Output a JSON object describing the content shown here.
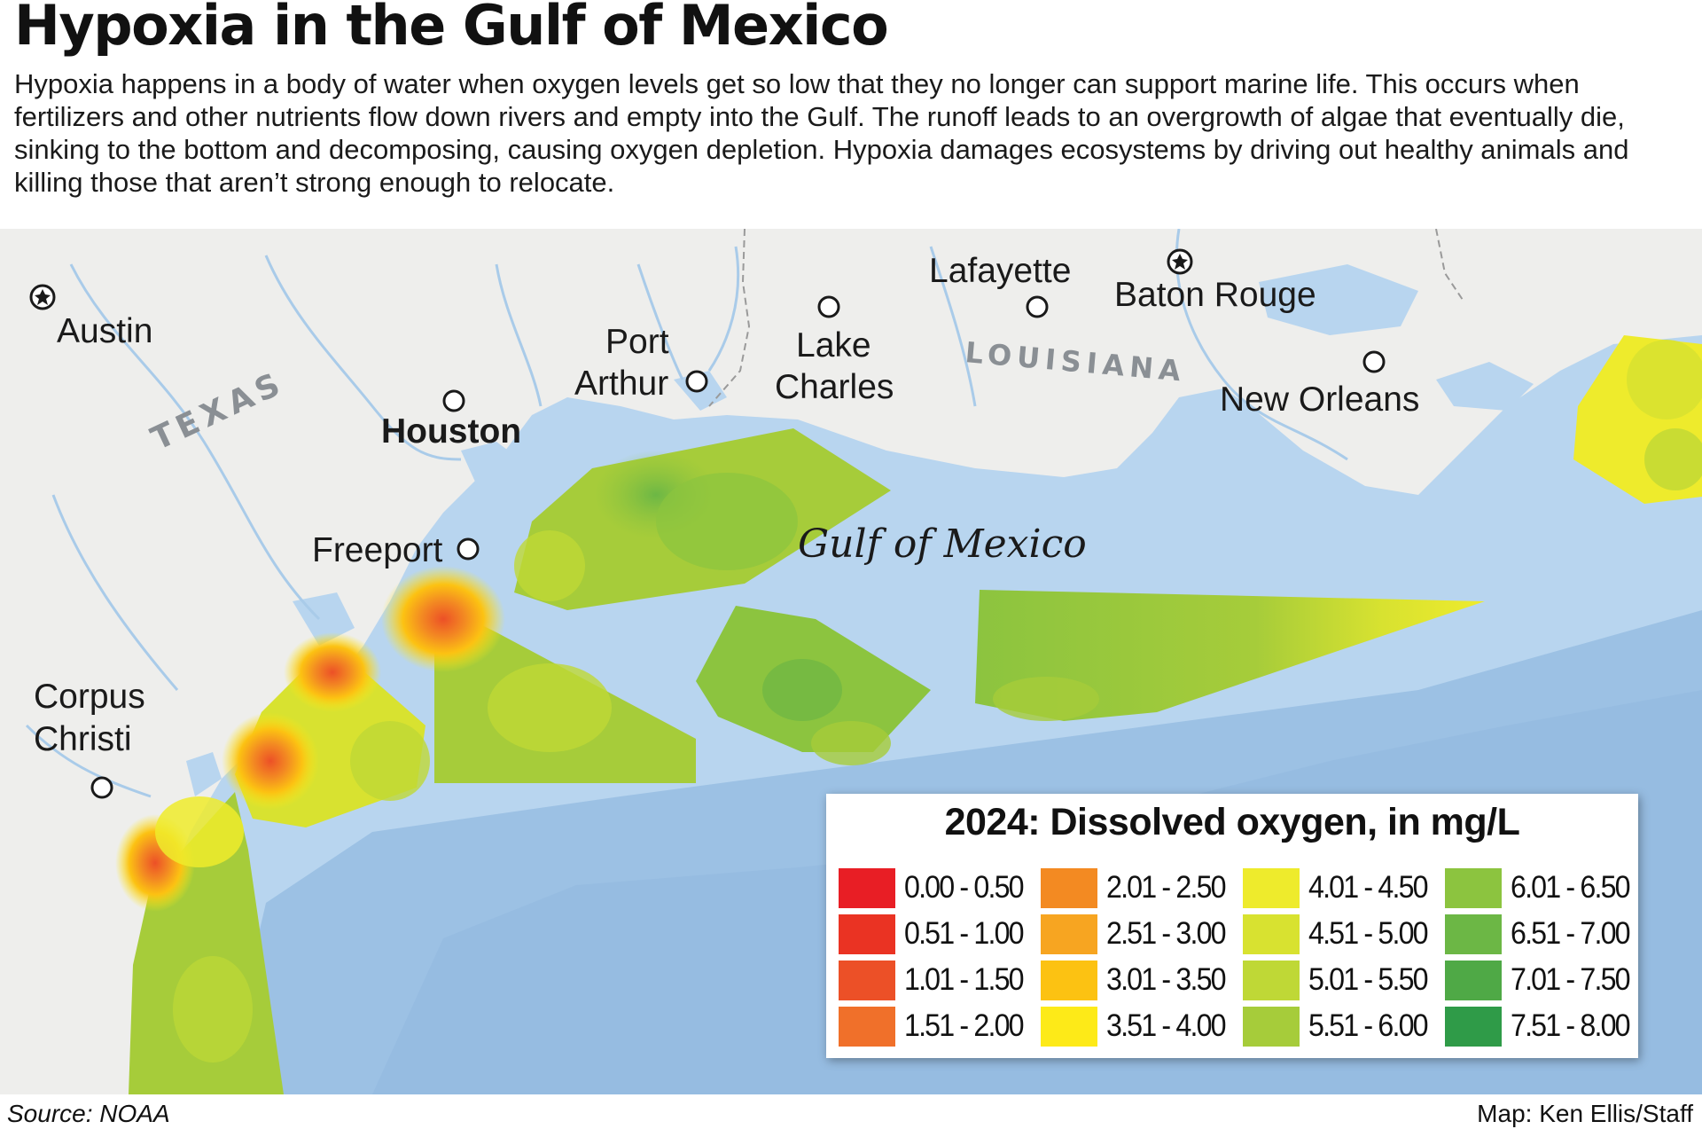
{
  "header": {
    "title": "Hypoxia in the Gulf of Mexico",
    "description": "Hypoxia happens in a body of water when oxygen levels get so low that they no longer can support marine life. This occurs when fertilizers and other nutrients flow down rivers and empty into the Gulf. The runoff leads to an overgrowth of algae that eventually die, sinking to the bottom and decomposing, causing oxygen depletion. Hypoxia damages ecosystems by driving out healthy animals and killing those that aren’t strong enough to relocate."
  },
  "map": {
    "state_labels": {
      "texas": "TEXAS",
      "louisiana": "LOUISIANA"
    },
    "water_label": "Gulf of Mexico",
    "cities": {
      "austin": "Austin",
      "houston": "Houston",
      "port_arthur_1": "Port",
      "port_arthur_2": "Arthur",
      "lake_charles_1": "Lake",
      "lake_charles_2": "Charles",
      "lafayette": "Lafayette",
      "baton_rouge": "Baton Rouge",
      "new_orleans": "New Orleans",
      "freeport": "Freeport",
      "corpus_christi_1": "Corpus",
      "corpus_christi_2": "Christi"
    },
    "capital_cities": [
      "Austin",
      "Baton Rouge"
    ],
    "colors": {
      "land": "#eeeeec",
      "water": "#b8d5ef",
      "deep_water": "#9cc1e4",
      "rivers": "#a9cbe9",
      "state_line": "#9a9a9a"
    }
  },
  "legend": {
    "title": "2024: Dissolved oxygen, in mg/L",
    "items": [
      {
        "label": "0.00 - 0.50",
        "color": "#e81e25"
      },
      {
        "label": "0.51 - 1.00",
        "color": "#ea3323"
      },
      {
        "label": "1.01 - 1.50",
        "color": "#ec5027"
      },
      {
        "label": "1.51 - 2.00",
        "color": "#f0702a"
      },
      {
        "label": "2.01 - 2.50",
        "color": "#f38a22"
      },
      {
        "label": "2.51 - 3.00",
        "color": "#f7a521"
      },
      {
        "label": "3.01 - 3.50",
        "color": "#fcc212"
      },
      {
        "label": "3.51 - 4.00",
        "color": "#fdea18"
      },
      {
        "label": "4.01 - 4.50",
        "color": "#eeeb2c"
      },
      {
        "label": "4.51 - 5.00",
        "color": "#d8e230"
      },
      {
        "label": "5.01 - 5.50",
        "color": "#bfd836"
      },
      {
        "label": "5.51 - 6.00",
        "color": "#a6cc3a"
      },
      {
        "label": "6.01 - 6.50",
        "color": "#8cc43f"
      },
      {
        "label": "6.51 - 7.00",
        "color": "#6cb745"
      },
      {
        "label": "7.01 - 7.50",
        "color": "#4fa946"
      },
      {
        "label": "7.51 - 8.00",
        "color": "#2f9b48"
      }
    ]
  },
  "footer": {
    "source": "Source: NOAA",
    "credit": "Map: Ken Ellis/Staff"
  }
}
